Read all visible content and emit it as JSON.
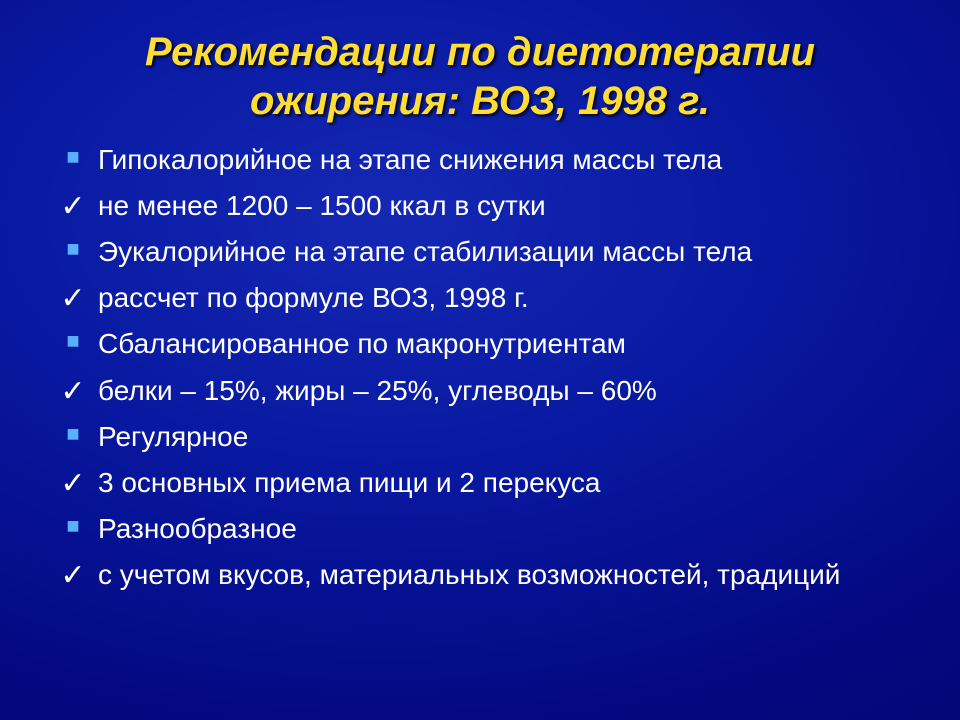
{
  "title": {
    "line1": "Рекомендации по диетотерапии",
    "line2": "ожирения: ВОЗ, 1998 г.",
    "color": "#ffdd33",
    "fontsize": 40
  },
  "bullets": {
    "square_color": "#58b0ff",
    "check_color": "#ffffff",
    "text_color": "#ffffff",
    "fontsize": 28
  },
  "items": [
    {
      "marker": "square",
      "text": "Гипокалорийное на этапе снижения массы тела"
    },
    {
      "marker": "check",
      "text": "не менее 1200 – 1500 ккал  в сутки"
    },
    {
      "marker": "square",
      "text": "Эукалорийное на этапе стабилизации массы тела"
    },
    {
      "marker": "check",
      "text": "рассчет по формуле ВОЗ, 1998 г."
    },
    {
      "marker": "square",
      "text": "Сбалансированное по макронутриентам"
    },
    {
      "marker": "check",
      "text": "белки – 15%, жиры – 25%, углеводы – 60%"
    },
    {
      "marker": "square",
      "text": "Регулярное"
    },
    {
      "marker": "check",
      "text": "3 основных приема пищи и 2 перекуса"
    },
    {
      "marker": "square",
      "text": "Разнообразное"
    },
    {
      "marker": "check",
      "text": "с учетом вкусов, материальных возможностей, традиций"
    }
  ],
  "background": {
    "gradient_inner": "#1428b4",
    "gradient_outer": "#020460"
  }
}
